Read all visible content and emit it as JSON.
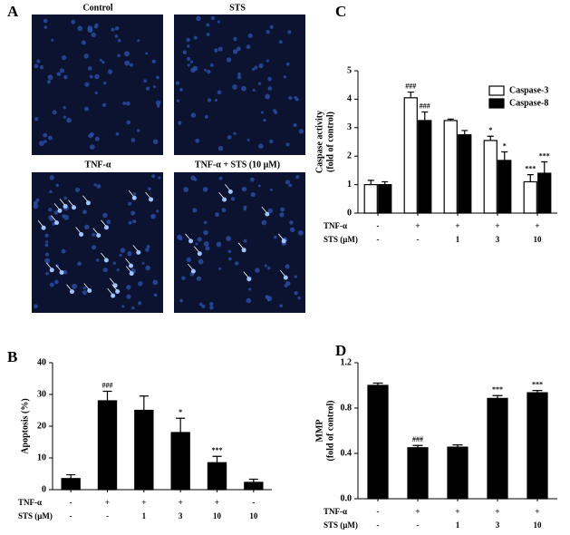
{
  "panel_a": {
    "letter": "A",
    "captions": [
      "Control",
      "STS",
      "TNF-α",
      "TNF-α + STS (10 μM)"
    ]
  },
  "chart_data": [
    {
      "type": "bar",
      "panel": "B",
      "ylabel": [
        "Apoptosis (%)"
      ],
      "values": [
        3.5,
        28,
        25,
        18,
        8.5,
        2.3
      ],
      "errors": [
        1.2,
        3,
        4.5,
        4.5,
        2,
        1
      ],
      "annotations": [
        null,
        "###",
        null,
        "*",
        "***",
        null
      ],
      "color": "#000000",
      "ylim": [
        0,
        40
      ],
      "yticks": [
        0,
        10,
        20,
        30,
        40
      ],
      "condition_rows": [
        {
          "name": "TNF-α",
          "labels": [
            "-",
            "+",
            "+",
            "+",
            "+",
            "-"
          ]
        },
        {
          "name": "STS (μM)",
          "labels": [
            "-",
            "-",
            "1",
            "3",
            "10",
            "10"
          ]
        }
      ]
    },
    {
      "type": "bar",
      "panel": "C",
      "ylabel": [
        "Caspase activity",
        "(fold of control)"
      ],
      "series": [
        {
          "name": "Caspase-3",
          "color": "#ffffff",
          "values": [
            1.0,
            4.05,
            3.25,
            2.55,
            1.1
          ],
          "errors": [
            0.15,
            0.2,
            0.05,
            0.15,
            0.25
          ],
          "annotations": [
            null,
            "###",
            null,
            "*",
            "***"
          ]
        },
        {
          "name": "Caspase-8",
          "color": "#000000",
          "values": [
            1.0,
            3.25,
            2.75,
            1.85,
            1.4
          ],
          "errors": [
            0.1,
            0.3,
            0.15,
            0.3,
            0.4
          ],
          "annotations": [
            null,
            "###",
            null,
            "*",
            "***"
          ]
        }
      ],
      "legend": "upper right",
      "ylim": [
        0,
        5
      ],
      "yticks": [
        0,
        1,
        2,
        3,
        4,
        5
      ],
      "condition_rows": [
        {
          "name": "TNF-α",
          "labels": [
            "-",
            "+",
            "+",
            "+",
            "+"
          ]
        },
        {
          "name": "STS (μM)",
          "labels": [
            "-",
            "-",
            "1",
            "3",
            "10"
          ]
        }
      ]
    },
    {
      "type": "bar",
      "panel": "D",
      "ylabel": [
        "MMP",
        "(fold of control)"
      ],
      "values": [
        1.0,
        0.45,
        0.455,
        0.885,
        0.935
      ],
      "errors": [
        0.02,
        0.02,
        0.02,
        0.025,
        0.02
      ],
      "annotations": [
        null,
        "###",
        null,
        "***",
        "***"
      ],
      "color": "#000000",
      "ylim": [
        0,
        1.2
      ],
      "yticks": [
        {
          "value": 0,
          "label": "0.0"
        },
        0.4,
        0.8,
        1.2
      ],
      "condition_rows": [
        {
          "name": "TNF-α",
          "labels": [
            "-",
            "+",
            "+",
            "+",
            "+"
          ]
        },
        {
          "name": "STS (μM)",
          "labels": [
            "-",
            "-",
            "1",
            "3",
            "10"
          ]
        }
      ]
    }
  ]
}
